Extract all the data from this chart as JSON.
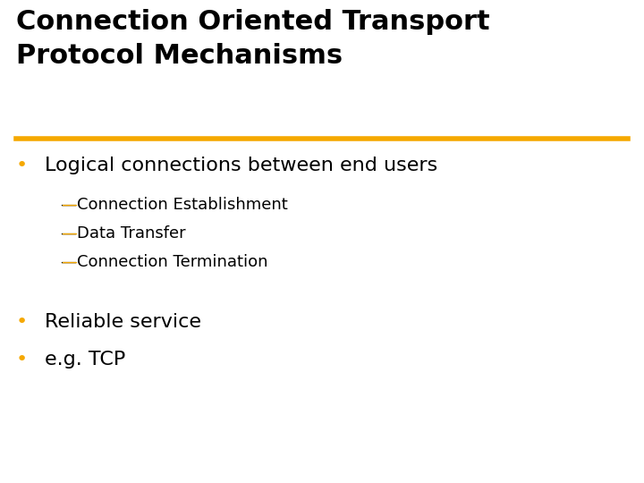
{
  "title_line1": "Connection Oriented Transport",
  "title_line2": "Protocol Mechanisms",
  "title_color": "#000000",
  "title_fontsize": 22,
  "title_fontweight": "bold",
  "divider_color": "#F5A800",
  "divider_linewidth": 4,
  "bullet_color": "#F5A800",
  "bullet1_text": "Logical connections between end users",
  "bullet1_fontsize": 16,
  "subbullet_color": "#F5A800",
  "subbullets": [
    "—Connection Establishment",
    "—Data Transfer",
    "—Connection Termination"
  ],
  "subbullet_fontsize": 13,
  "bullet2_text": "Reliable service",
  "bullet2_fontsize": 16,
  "bullet3_text": "e.g. TCP",
  "bullet3_fontsize": 16,
  "background_color": "#ffffff"
}
